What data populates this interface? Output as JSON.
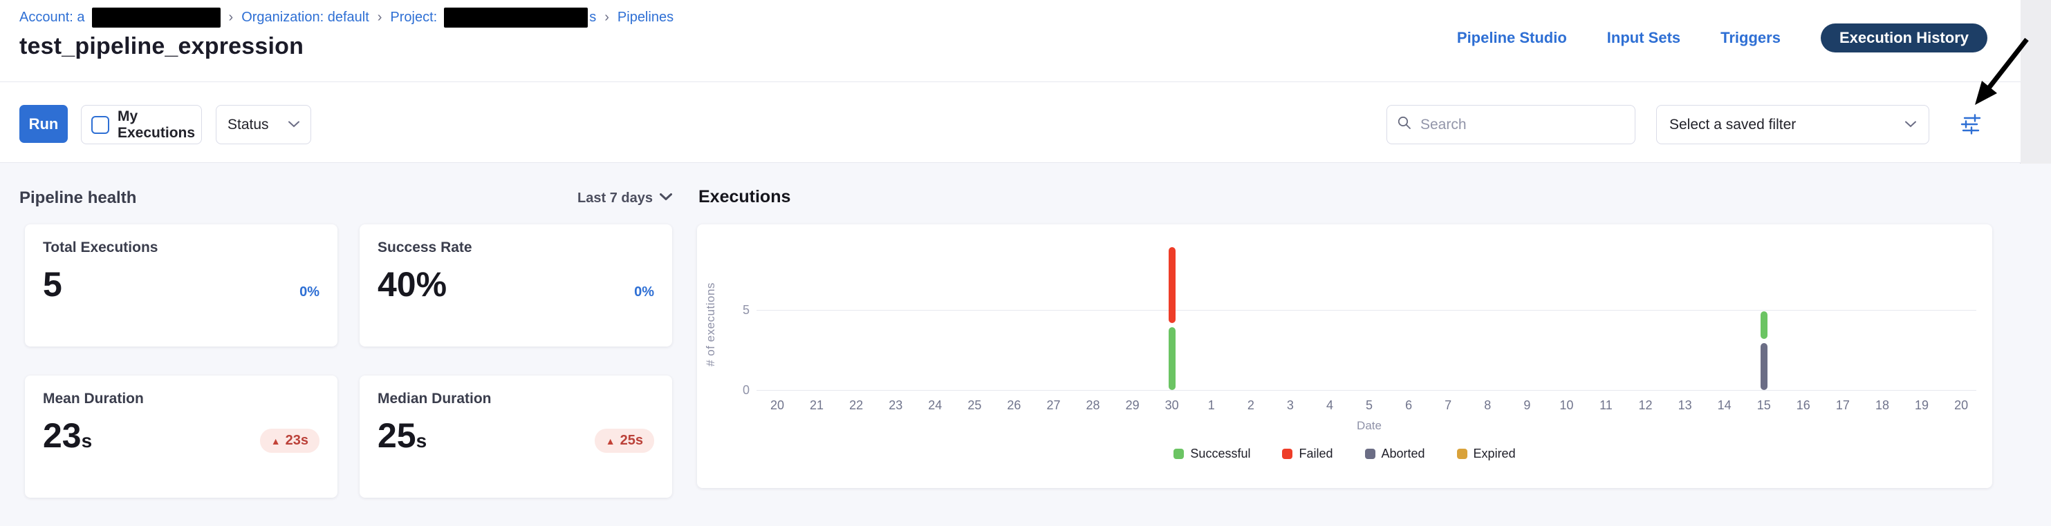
{
  "colors": {
    "link_blue": "#2e6fd4",
    "nav_pill_navy": "#1d3e66",
    "delta_blue": "#2e6fd4",
    "badge_red": "#bb4139",
    "badge_bg": "#fce9e6",
    "successful_green": "#6bc463",
    "failed_red": "#ee3d28",
    "aborted_slate": "#6b6d85",
    "expired_amber": "#d9a23a"
  },
  "breadcrumb": {
    "separator": "›",
    "items": [
      {
        "text": "Account: a",
        "redacted_after": true,
        "after_text": ""
      },
      {
        "text": "Organization: default",
        "redacted_after": false,
        "after_text": ""
      },
      {
        "text": "Project:",
        "redacted_after": true,
        "after_text": "s"
      },
      {
        "text": "Pipelines",
        "redacted_after": false,
        "after_text": ""
      }
    ]
  },
  "header": {
    "title": "test_pipeline_expression",
    "nav": [
      {
        "label": "Pipeline Studio",
        "active": false
      },
      {
        "label": "Input Sets",
        "active": false
      },
      {
        "label": "Triggers",
        "active": false
      },
      {
        "label": "Execution History",
        "active": true
      }
    ]
  },
  "toolbar": {
    "run_label": "Run",
    "my_executions_label": "My Executions",
    "my_executions_checked": false,
    "status_label": "Status",
    "search_placeholder": "Search",
    "saved_filter_value": "Select a saved filter"
  },
  "pipeline_health": {
    "heading": "Pipeline health",
    "range_label": "Last 7 days",
    "cards": [
      {
        "title": "Total Executions",
        "value": "5",
        "suffix": "",
        "delta": "0%",
        "delta_style": "plain"
      },
      {
        "title": "Success Rate",
        "value": "40%",
        "suffix": "",
        "delta": "0%",
        "delta_style": "plain"
      },
      {
        "title": "Mean Duration",
        "value": "23",
        "suffix": "s",
        "delta": "23s",
        "delta_style": "badge"
      },
      {
        "title": "Median Duration",
        "value": "25",
        "suffix": "s",
        "delta": "25s",
        "delta_style": "badge"
      }
    ]
  },
  "executions": {
    "heading": "Executions"
  },
  "chart_data": {
    "type": "bar",
    "stacked": true,
    "title": "Executions",
    "xlabel": "Date",
    "ylabel": "# of executions",
    "ylim": [
      0,
      9.3
    ],
    "yticks": [
      0,
      5
    ],
    "grid": "horizontal-only",
    "legend_position": "bottom-center",
    "categories": [
      "20",
      "21",
      "22",
      "23",
      "24",
      "25",
      "26",
      "27",
      "28",
      "29",
      "30",
      "1",
      "2",
      "3",
      "4",
      "5",
      "6",
      "7",
      "8",
      "9",
      "10",
      "11",
      "12",
      "13",
      "14",
      "15",
      "16",
      "17",
      "18",
      "19",
      "20"
    ],
    "series": [
      {
        "name": "Successful",
        "color": "#6bc463",
        "values": [
          0,
          0,
          0,
          0,
          0,
          0,
          0,
          0,
          0,
          0,
          4,
          0,
          0,
          0,
          0,
          0,
          0,
          0,
          0,
          0,
          0,
          0,
          0,
          0,
          0,
          2,
          0,
          0,
          0,
          0,
          0
        ]
      },
      {
        "name": "Failed",
        "color": "#ee3d28",
        "values": [
          0,
          0,
          0,
          0,
          0,
          0,
          0,
          0,
          0,
          0,
          5,
          0,
          0,
          0,
          0,
          0,
          0,
          0,
          0,
          0,
          0,
          0,
          0,
          0,
          0,
          0,
          0,
          0,
          0,
          0,
          0
        ]
      },
      {
        "name": "Aborted",
        "color": "#6b6d85",
        "values": [
          0,
          0,
          0,
          0,
          0,
          0,
          0,
          0,
          0,
          0,
          0,
          0,
          0,
          0,
          0,
          0,
          0,
          0,
          0,
          0,
          0,
          0,
          0,
          0,
          0,
          3,
          0,
          0,
          0,
          0,
          0
        ]
      },
      {
        "name": "Expired",
        "color": "#d9a23a",
        "values": [
          0,
          0,
          0,
          0,
          0,
          0,
          0,
          0,
          0,
          0,
          0,
          0,
          0,
          0,
          0,
          0,
          0,
          0,
          0,
          0,
          0,
          0,
          0,
          0,
          0,
          0,
          0,
          0,
          0,
          0,
          0
        ]
      }
    ],
    "bars": [
      {
        "category_index": 10,
        "category": "30",
        "segments_bottom_to_top": [
          {
            "name": "Successful",
            "value": 4
          },
          {
            "name": "Failed",
            "value": 5
          }
        ]
      },
      {
        "category_index": 25,
        "category": "15",
        "segments_bottom_to_top": [
          {
            "name": "Aborted",
            "value": 3
          },
          {
            "name": "Successful",
            "value": 2
          }
        ]
      }
    ]
  }
}
